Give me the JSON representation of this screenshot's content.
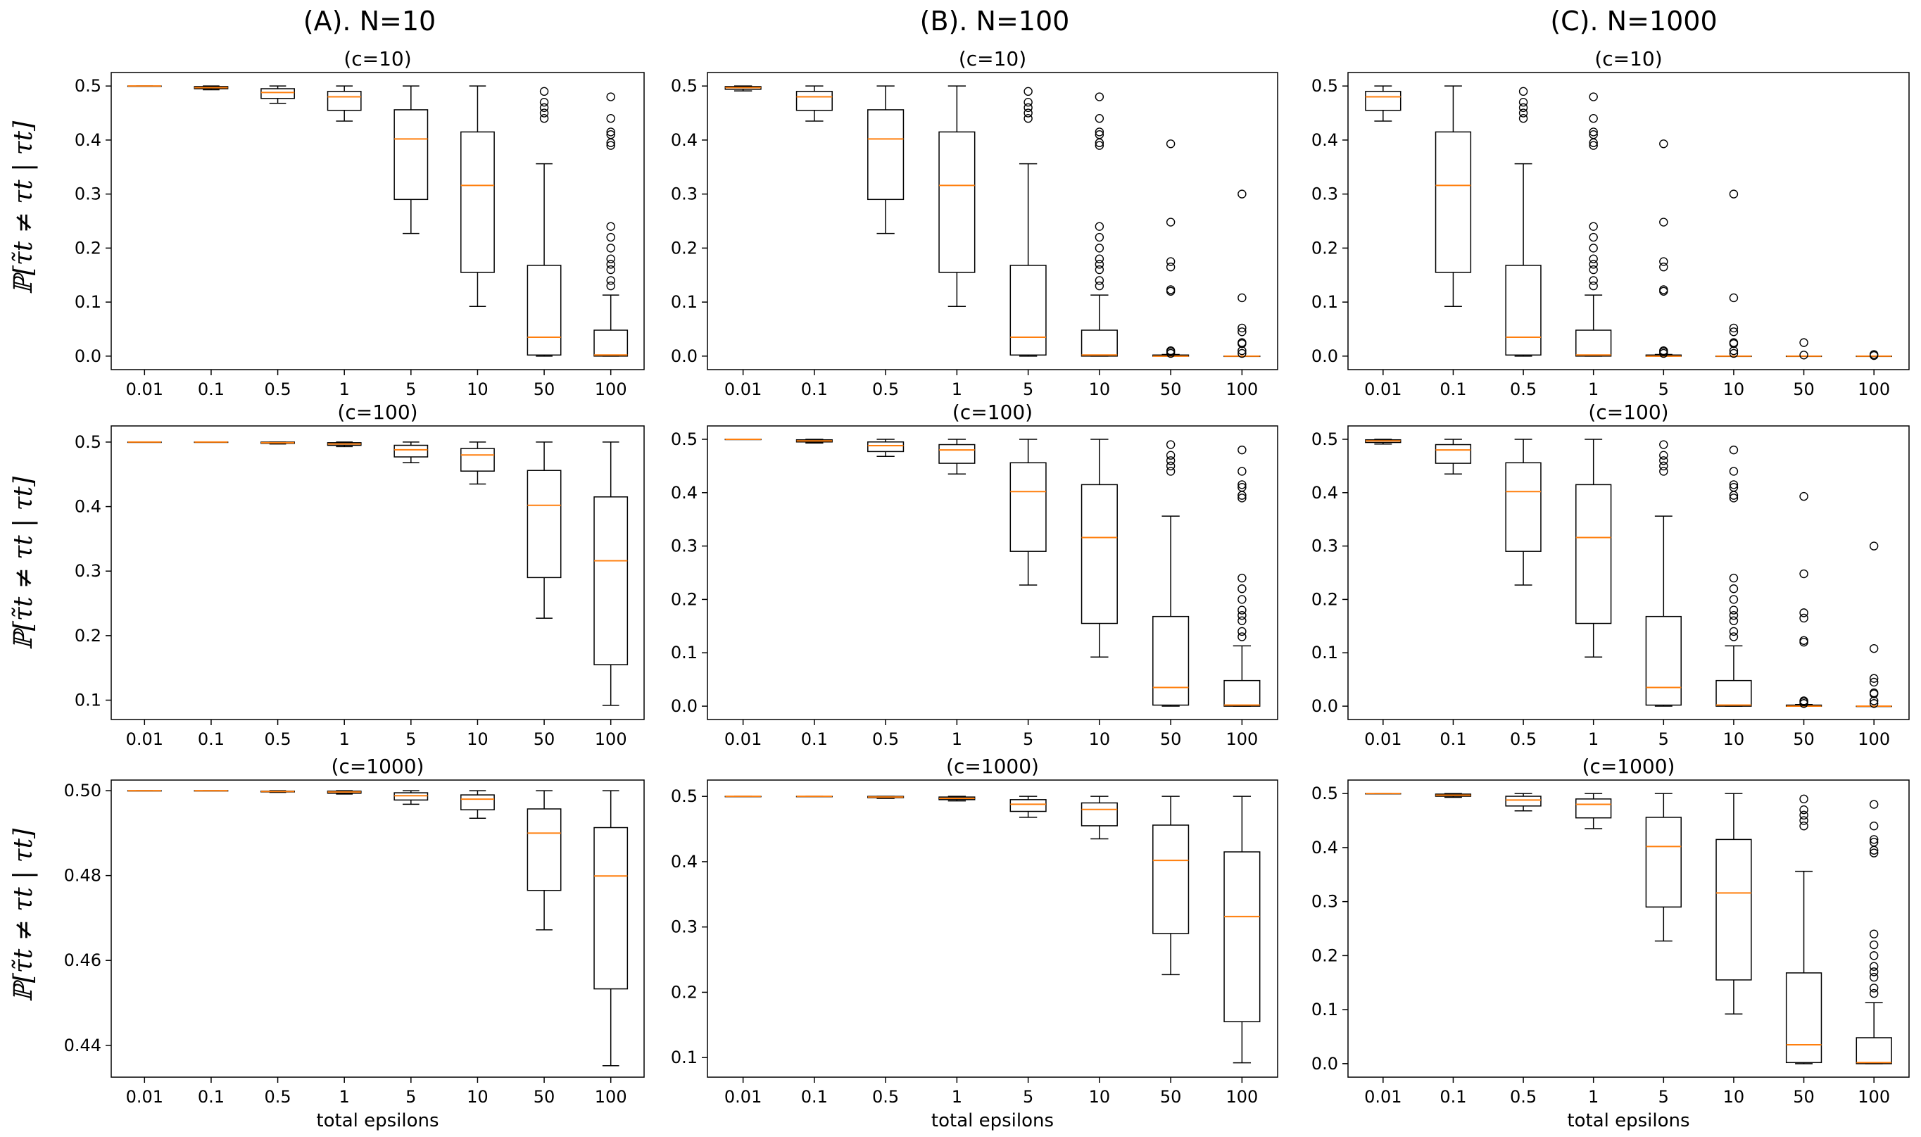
{
  "column_titles": [
    "(A). N=10",
    "(B). N=100",
    "(C). N=1000"
  ],
  "ylabel": "ℙ[τ̃t ≠ τt | τt]",
  "xlabel": "total epsilons",
  "colors": {
    "box": "#000000",
    "median": "#ff7f0e"
  },
  "chart_data": [
    {
      "row": 0,
      "col": 0,
      "type": "box",
      "title": "(c=10)",
      "categories": [
        "0.01",
        "0.1",
        "0.5",
        "1",
        "5",
        "10",
        "50",
        "100"
      ],
      "ylim": [
        -0.025,
        0.525
      ],
      "yticks": [
        "0.0",
        "0.1",
        "0.2",
        "0.3",
        "0.4",
        "0.5"
      ],
      "xlabel": "",
      "boxes": [
        {
          "q1": 0.5,
          "median": 0.5,
          "q3": 0.5,
          "whislo": 0.5,
          "whishi": 0.5,
          "fliers": []
        },
        {
          "q1": 0.495,
          "median": 0.497,
          "q3": 0.499,
          "whislo": 0.493,
          "whishi": 0.5,
          "fliers": []
        },
        {
          "q1": 0.477,
          "median": 0.488,
          "q3": 0.495,
          "whislo": 0.468,
          "whishi": 0.5,
          "fliers": []
        },
        {
          "q1": 0.455,
          "median": 0.48,
          "q3": 0.49,
          "whislo": 0.435,
          "whishi": 0.5,
          "fliers": []
        },
        {
          "q1": 0.29,
          "median": 0.402,
          "q3": 0.456,
          "whislo": 0.227,
          "whishi": 0.5,
          "fliers": []
        },
        {
          "q1": 0.155,
          "median": 0.316,
          "q3": 0.415,
          "whislo": 0.092,
          "whishi": 0.5,
          "fliers": []
        },
        {
          "q1": 0.002,
          "median": 0.035,
          "q3": 0.168,
          "whislo": 0.0,
          "whishi": 0.356,
          "fliers": [
            0.44,
            0.45,
            0.46,
            0.47,
            0.49
          ]
        },
        {
          "q1": 0.0,
          "median": 0.002,
          "q3": 0.048,
          "whislo": 0.0,
          "whishi": 0.113,
          "fliers": [
            0.13,
            0.14,
            0.16,
            0.17,
            0.18,
            0.2,
            0.22,
            0.24,
            0.39,
            0.395,
            0.41,
            0.415,
            0.44,
            0.48
          ]
        }
      ]
    },
    {
      "row": 0,
      "col": 1,
      "type": "box",
      "title": "(c=10)",
      "categories": [
        "0.01",
        "0.1",
        "0.5",
        "1",
        "5",
        "10",
        "50",
        "100"
      ],
      "ylim": [
        -0.025,
        0.525
      ],
      "yticks": [
        "0.0",
        "0.1",
        "0.2",
        "0.3",
        "0.4",
        "0.5"
      ],
      "xlabel": "",
      "boxes": [
        {
          "q1": 0.494,
          "median": 0.497,
          "q3": 0.499,
          "whislo": 0.491,
          "whishi": 0.5,
          "fliers": []
        },
        {
          "q1": 0.455,
          "median": 0.48,
          "q3": 0.49,
          "whislo": 0.435,
          "whishi": 0.5,
          "fliers": []
        },
        {
          "q1": 0.29,
          "median": 0.402,
          "q3": 0.456,
          "whislo": 0.227,
          "whishi": 0.5,
          "fliers": []
        },
        {
          "q1": 0.155,
          "median": 0.316,
          "q3": 0.415,
          "whislo": 0.092,
          "whishi": 0.5,
          "fliers": []
        },
        {
          "q1": 0.002,
          "median": 0.035,
          "q3": 0.168,
          "whislo": 0.0,
          "whishi": 0.356,
          "fliers": [
            0.44,
            0.45,
            0.46,
            0.47,
            0.49
          ]
        },
        {
          "q1": 0.0,
          "median": 0.002,
          "q3": 0.048,
          "whislo": 0.0,
          "whishi": 0.113,
          "fliers": [
            0.13,
            0.14,
            0.16,
            0.17,
            0.18,
            0.2,
            0.22,
            0.24,
            0.39,
            0.395,
            0.41,
            0.415,
            0.44,
            0.48
          ]
        },
        {
          "q1": 0.0,
          "median": 0.0,
          "q3": 0.002,
          "whislo": 0.0,
          "whishi": 0.003,
          "fliers": [
            0.005,
            0.008,
            0.01,
            0.12,
            0.123,
            0.165,
            0.175,
            0.248,
            0.393
          ]
        },
        {
          "q1": 0.0,
          "median": 0.0,
          "q3": 0.0,
          "whislo": 0.0,
          "whishi": 0.0,
          "fliers": [
            0.005,
            0.01,
            0.023,
            0.025,
            0.045,
            0.052,
            0.108,
            0.3
          ]
        }
      ]
    },
    {
      "row": 0,
      "col": 2,
      "type": "box",
      "title": "(c=10)",
      "categories": [
        "0.01",
        "0.1",
        "0.5",
        "1",
        "5",
        "10",
        "50",
        "100"
      ],
      "ylim": [
        -0.025,
        0.525
      ],
      "yticks": [
        "0.0",
        "0.1",
        "0.2",
        "0.3",
        "0.4",
        "0.5"
      ],
      "xlabel": "",
      "boxes": [
        {
          "q1": 0.455,
          "median": 0.48,
          "q3": 0.49,
          "whislo": 0.435,
          "whishi": 0.5,
          "fliers": []
        },
        {
          "q1": 0.155,
          "median": 0.316,
          "q3": 0.415,
          "whislo": 0.092,
          "whishi": 0.5,
          "fliers": []
        },
        {
          "q1": 0.002,
          "median": 0.035,
          "q3": 0.168,
          "whislo": 0.0,
          "whishi": 0.356,
          "fliers": [
            0.44,
            0.45,
            0.46,
            0.47,
            0.49
          ]
        },
        {
          "q1": 0.0,
          "median": 0.002,
          "q3": 0.048,
          "whislo": 0.0,
          "whishi": 0.113,
          "fliers": [
            0.13,
            0.14,
            0.16,
            0.17,
            0.18,
            0.2,
            0.22,
            0.24,
            0.39,
            0.395,
            0.41,
            0.415,
            0.44,
            0.48
          ]
        },
        {
          "q1": 0.0,
          "median": 0.0,
          "q3": 0.002,
          "whislo": 0.0,
          "whishi": 0.003,
          "fliers": [
            0.005,
            0.008,
            0.01,
            0.12,
            0.123,
            0.165,
            0.175,
            0.248,
            0.393
          ]
        },
        {
          "q1": 0.0,
          "median": 0.0,
          "q3": 0.0,
          "whislo": 0.0,
          "whishi": 0.0,
          "fliers": [
            0.005,
            0.01,
            0.023,
            0.025,
            0.045,
            0.052,
            0.108,
            0.3
          ]
        },
        {
          "q1": 0.0,
          "median": 0.0,
          "q3": 0.0,
          "whislo": 0.0,
          "whishi": 0.0,
          "fliers": [
            0.002,
            0.025
          ]
        },
        {
          "q1": 0.0,
          "median": 0.0,
          "q3": 0.0,
          "whislo": 0.0,
          "whishi": 0.0,
          "fliers": [
            0.001,
            0.003
          ]
        }
      ]
    },
    {
      "row": 1,
      "col": 0,
      "type": "box",
      "title": "(c=100)",
      "categories": [
        "0.01",
        "0.1",
        "0.5",
        "1",
        "5",
        "10",
        "50",
        "100"
      ],
      "ylim": [
        0.07,
        0.525
      ],
      "yticks": [
        "0.1",
        "0.2",
        "0.3",
        "0.4",
        "0.5"
      ],
      "xlabel": "",
      "boxes": [
        {
          "q1": 0.5,
          "median": 0.5,
          "q3": 0.5,
          "whislo": 0.5,
          "whishi": 0.5,
          "fliers": []
        },
        {
          "q1": 0.5,
          "median": 0.5,
          "q3": 0.5,
          "whislo": 0.5,
          "whishi": 0.5,
          "fliers": []
        },
        {
          "q1": 0.498,
          "median": 0.499,
          "q3": 0.5,
          "whislo": 0.497,
          "whishi": 0.5,
          "fliers": []
        },
        {
          "q1": 0.495,
          "median": 0.497,
          "q3": 0.499,
          "whislo": 0.493,
          "whishi": 0.5,
          "fliers": []
        },
        {
          "q1": 0.477,
          "median": 0.488,
          "q3": 0.495,
          "whislo": 0.468,
          "whishi": 0.5,
          "fliers": []
        },
        {
          "q1": 0.455,
          "median": 0.48,
          "q3": 0.49,
          "whislo": 0.435,
          "whishi": 0.5,
          "fliers": []
        },
        {
          "q1": 0.29,
          "median": 0.402,
          "q3": 0.456,
          "whislo": 0.227,
          "whishi": 0.5,
          "fliers": []
        },
        {
          "q1": 0.155,
          "median": 0.316,
          "q3": 0.415,
          "whislo": 0.092,
          "whishi": 0.5,
          "fliers": []
        }
      ]
    },
    {
      "row": 1,
      "col": 1,
      "type": "box",
      "title": "(c=100)",
      "categories": [
        "0.01",
        "0.1",
        "0.5",
        "1",
        "5",
        "10",
        "50",
        "100"
      ],
      "ylim": [
        -0.025,
        0.525
      ],
      "yticks": [
        "0.0",
        "0.1",
        "0.2",
        "0.3",
        "0.4",
        "0.5"
      ],
      "xlabel": "",
      "boxes": [
        {
          "q1": 0.5,
          "median": 0.5,
          "q3": 0.5,
          "whislo": 0.5,
          "whishi": 0.5,
          "fliers": []
        },
        {
          "q1": 0.495,
          "median": 0.497,
          "q3": 0.499,
          "whislo": 0.493,
          "whishi": 0.5,
          "fliers": []
        },
        {
          "q1": 0.477,
          "median": 0.488,
          "q3": 0.495,
          "whislo": 0.468,
          "whishi": 0.5,
          "fliers": []
        },
        {
          "q1": 0.455,
          "median": 0.48,
          "q3": 0.49,
          "whislo": 0.435,
          "whishi": 0.5,
          "fliers": []
        },
        {
          "q1": 0.29,
          "median": 0.402,
          "q3": 0.456,
          "whislo": 0.227,
          "whishi": 0.5,
          "fliers": []
        },
        {
          "q1": 0.155,
          "median": 0.316,
          "q3": 0.415,
          "whislo": 0.092,
          "whishi": 0.5,
          "fliers": []
        },
        {
          "q1": 0.002,
          "median": 0.035,
          "q3": 0.168,
          "whislo": 0.0,
          "whishi": 0.356,
          "fliers": [
            0.44,
            0.45,
            0.46,
            0.47,
            0.49
          ]
        },
        {
          "q1": 0.0,
          "median": 0.002,
          "q3": 0.048,
          "whislo": 0.0,
          "whishi": 0.113,
          "fliers": [
            0.13,
            0.14,
            0.16,
            0.17,
            0.18,
            0.2,
            0.22,
            0.24,
            0.39,
            0.395,
            0.41,
            0.415,
            0.44,
            0.48
          ]
        }
      ]
    },
    {
      "row": 1,
      "col": 2,
      "type": "box",
      "title": "(c=100)",
      "categories": [
        "0.01",
        "0.1",
        "0.5",
        "1",
        "5",
        "10",
        "50",
        "100"
      ],
      "ylim": [
        -0.025,
        0.525
      ],
      "yticks": [
        "0.0",
        "0.1",
        "0.2",
        "0.3",
        "0.4",
        "0.5"
      ],
      "xlabel": "",
      "boxes": [
        {
          "q1": 0.494,
          "median": 0.497,
          "q3": 0.499,
          "whislo": 0.491,
          "whishi": 0.5,
          "fliers": []
        },
        {
          "q1": 0.455,
          "median": 0.48,
          "q3": 0.49,
          "whislo": 0.435,
          "whishi": 0.5,
          "fliers": []
        },
        {
          "q1": 0.29,
          "median": 0.402,
          "q3": 0.456,
          "whislo": 0.227,
          "whishi": 0.5,
          "fliers": []
        },
        {
          "q1": 0.155,
          "median": 0.316,
          "q3": 0.415,
          "whislo": 0.092,
          "whishi": 0.5,
          "fliers": []
        },
        {
          "q1": 0.002,
          "median": 0.035,
          "q3": 0.168,
          "whislo": 0.0,
          "whishi": 0.356,
          "fliers": [
            0.44,
            0.45,
            0.46,
            0.47,
            0.49
          ]
        },
        {
          "q1": 0.0,
          "median": 0.002,
          "q3": 0.048,
          "whislo": 0.0,
          "whishi": 0.113,
          "fliers": [
            0.13,
            0.14,
            0.16,
            0.17,
            0.18,
            0.2,
            0.22,
            0.24,
            0.39,
            0.395,
            0.41,
            0.415,
            0.44,
            0.48
          ]
        },
        {
          "q1": 0.0,
          "median": 0.0,
          "q3": 0.002,
          "whislo": 0.0,
          "whishi": 0.003,
          "fliers": [
            0.005,
            0.008,
            0.01,
            0.12,
            0.123,
            0.165,
            0.175,
            0.248,
            0.393
          ]
        },
        {
          "q1": 0.0,
          "median": 0.0,
          "q3": 0.0,
          "whislo": 0.0,
          "whishi": 0.0,
          "fliers": [
            0.005,
            0.01,
            0.023,
            0.025,
            0.045,
            0.052,
            0.108,
            0.3
          ]
        }
      ]
    },
    {
      "row": 2,
      "col": 0,
      "type": "box",
      "title": "(c=1000)",
      "categories": [
        "0.01",
        "0.1",
        "0.5",
        "1",
        "5",
        "10",
        "50",
        "100"
      ],
      "ylim": [
        0.4325,
        0.5025
      ],
      "yticks": [
        "0.44",
        "0.46",
        "0.48",
        "0.50"
      ],
      "xlabel": "total epsilons",
      "boxes": [
        {
          "q1": 0.5,
          "median": 0.5,
          "q3": 0.5,
          "whislo": 0.5,
          "whishi": 0.5,
          "fliers": []
        },
        {
          "q1": 0.5,
          "median": 0.5,
          "q3": 0.5,
          "whislo": 0.5,
          "whishi": 0.5,
          "fliers": []
        },
        {
          "q1": 0.4997,
          "median": 0.4998,
          "q3": 0.4999,
          "whislo": 0.4996,
          "whishi": 0.5,
          "fliers": []
        },
        {
          "q1": 0.4994,
          "median": 0.4997,
          "q3": 0.4999,
          "whislo": 0.4992,
          "whishi": 0.5,
          "fliers": []
        },
        {
          "q1": 0.4978,
          "median": 0.4988,
          "q3": 0.4995,
          "whislo": 0.4968,
          "whishi": 0.5,
          "fliers": []
        },
        {
          "q1": 0.4955,
          "median": 0.498,
          "q3": 0.499,
          "whislo": 0.4935,
          "whishi": 0.5,
          "fliers": []
        },
        {
          "q1": 0.4765,
          "median": 0.49,
          "q3": 0.4957,
          "whislo": 0.4672,
          "whishi": 0.5,
          "fliers": []
        },
        {
          "q1": 0.4533,
          "median": 0.4799,
          "q3": 0.4913,
          "whislo": 0.4352,
          "whishi": 0.5,
          "fliers": []
        }
      ]
    },
    {
      "row": 2,
      "col": 1,
      "type": "box",
      "title": "(c=1000)",
      "categories": [
        "0.01",
        "0.1",
        "0.5",
        "1",
        "5",
        "10",
        "50",
        "100"
      ],
      "ylim": [
        0.07,
        0.525
      ],
      "yticks": [
        "0.1",
        "0.2",
        "0.3",
        "0.4",
        "0.5"
      ],
      "xlabel": "total epsilons",
      "boxes": [
        {
          "q1": 0.5,
          "median": 0.5,
          "q3": 0.5,
          "whislo": 0.5,
          "whishi": 0.5,
          "fliers": []
        },
        {
          "q1": 0.5,
          "median": 0.5,
          "q3": 0.5,
          "whislo": 0.5,
          "whishi": 0.5,
          "fliers": []
        },
        {
          "q1": 0.498,
          "median": 0.499,
          "q3": 0.5,
          "whislo": 0.497,
          "whishi": 0.5,
          "fliers": []
        },
        {
          "q1": 0.495,
          "median": 0.497,
          "q3": 0.499,
          "whislo": 0.493,
          "whishi": 0.5,
          "fliers": []
        },
        {
          "q1": 0.477,
          "median": 0.488,
          "q3": 0.495,
          "whislo": 0.468,
          "whishi": 0.5,
          "fliers": []
        },
        {
          "q1": 0.455,
          "median": 0.48,
          "q3": 0.49,
          "whislo": 0.435,
          "whishi": 0.5,
          "fliers": []
        },
        {
          "q1": 0.29,
          "median": 0.402,
          "q3": 0.456,
          "whislo": 0.227,
          "whishi": 0.5,
          "fliers": []
        },
        {
          "q1": 0.155,
          "median": 0.316,
          "q3": 0.415,
          "whislo": 0.092,
          "whishi": 0.5,
          "fliers": []
        }
      ]
    },
    {
      "row": 2,
      "col": 2,
      "type": "box",
      "title": "(c=1000)",
      "categories": [
        "0.01",
        "0.1",
        "0.5",
        "1",
        "5",
        "10",
        "50",
        "100"
      ],
      "ylim": [
        -0.025,
        0.525
      ],
      "yticks": [
        "0.0",
        "0.1",
        "0.2",
        "0.3",
        "0.4",
        "0.5"
      ],
      "xlabel": "total epsilons",
      "boxes": [
        {
          "q1": 0.5,
          "median": 0.5,
          "q3": 0.5,
          "whislo": 0.5,
          "whishi": 0.5,
          "fliers": []
        },
        {
          "q1": 0.495,
          "median": 0.497,
          "q3": 0.499,
          "whislo": 0.493,
          "whishi": 0.5,
          "fliers": []
        },
        {
          "q1": 0.477,
          "median": 0.488,
          "q3": 0.495,
          "whislo": 0.468,
          "whishi": 0.5,
          "fliers": []
        },
        {
          "q1": 0.455,
          "median": 0.48,
          "q3": 0.49,
          "whislo": 0.435,
          "whishi": 0.5,
          "fliers": []
        },
        {
          "q1": 0.29,
          "median": 0.402,
          "q3": 0.456,
          "whislo": 0.227,
          "whishi": 0.5,
          "fliers": []
        },
        {
          "q1": 0.155,
          "median": 0.316,
          "q3": 0.415,
          "whislo": 0.092,
          "whishi": 0.5,
          "fliers": []
        },
        {
          "q1": 0.002,
          "median": 0.035,
          "q3": 0.168,
          "whislo": 0.0,
          "whishi": 0.356,
          "fliers": [
            0.44,
            0.45,
            0.46,
            0.47,
            0.49
          ]
        },
        {
          "q1": 0.0,
          "median": 0.002,
          "q3": 0.048,
          "whislo": 0.0,
          "whishi": 0.113,
          "fliers": [
            0.13,
            0.14,
            0.16,
            0.17,
            0.18,
            0.2,
            0.22,
            0.24,
            0.39,
            0.395,
            0.41,
            0.415,
            0.44,
            0.48
          ]
        }
      ]
    }
  ]
}
